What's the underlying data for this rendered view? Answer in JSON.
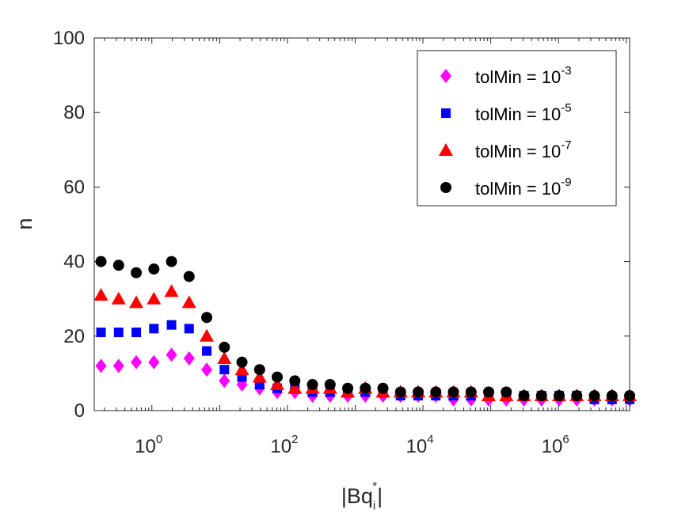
{
  "chart_data": {
    "type": "scatter",
    "title": "",
    "xscale": "log",
    "xlim_exp": [
      -0.85,
      7.05
    ],
    "ylim": [
      0,
      100
    ],
    "xlabel": {
      "pre": "|Bq",
      "sub": "i",
      "sup": "*",
      "post": "|"
    },
    "ylabel": "n",
    "x_ticks": [
      {
        "value": 1,
        "base": "10",
        "exp": "0"
      },
      {
        "value": 100,
        "base": "10",
        "exp": "2"
      },
      {
        "value": 10000,
        "base": "10",
        "exp": "4"
      },
      {
        "value": 1000000,
        "base": "10",
        "exp": "6"
      }
    ],
    "y_ticks": [
      0,
      20,
      40,
      60,
      80,
      100
    ],
    "x_log10": [
      -0.75,
      -0.49,
      -0.23,
      0.03,
      0.29,
      0.55,
      0.81,
      1.07,
      1.33,
      1.59,
      1.85,
      2.11,
      2.37,
      2.63,
      2.89,
      3.15,
      3.41,
      3.67,
      3.93,
      4.19,
      4.45,
      4.71,
      4.97,
      5.23,
      5.49,
      5.75,
      6.01,
      6.27,
      6.53,
      6.79,
      7.05
    ],
    "series": [
      {
        "name": "tolMin = 10^-3",
        "label_base": "tolMin = 10",
        "label_exp": "-3",
        "marker": "diamond",
        "color": "#ff00ff",
        "values": [
          12,
          12,
          13,
          13,
          15,
          14,
          11,
          8,
          7,
          6,
          5,
          5,
          4,
          4,
          4,
          4,
          4,
          4,
          4,
          4,
          3,
          3,
          3,
          3,
          3,
          3,
          3,
          3,
          3,
          3,
          3
        ]
      },
      {
        "name": "tolMin = 10^-5",
        "label_base": "tolMin = 10",
        "label_exp": "-5",
        "marker": "square",
        "color": "#0000ff",
        "values": [
          21,
          21,
          21,
          22,
          23,
          22,
          16,
          11,
          9,
          7,
          6,
          6,
          5,
          5,
          5,
          5,
          5,
          4,
          4,
          4,
          4,
          4,
          4,
          4,
          4,
          4,
          4,
          4,
          3,
          3,
          3
        ]
      },
      {
        "name": "tolMin = 10^-7",
        "label_base": "tolMin = 10",
        "label_exp": "-7",
        "marker": "triangle",
        "color": "#ff0000",
        "values": [
          31,
          30,
          29,
          30,
          32,
          29,
          20,
          14,
          11,
          9,
          7,
          6,
          6,
          6,
          5,
          6,
          5,
          5,
          5,
          5,
          5,
          5,
          4,
          4,
          4,
          4,
          4,
          4,
          4,
          4,
          4
        ]
      },
      {
        "name": "tolMin = 10^-9",
        "label_base": "tolMin = 10",
        "label_exp": "-9",
        "marker": "circle",
        "color": "#000000",
        "values": [
          40,
          39,
          37,
          38,
          40,
          36,
          25,
          17,
          13,
          11,
          9,
          8,
          7,
          7,
          6,
          6,
          6,
          5,
          5,
          5,
          5,
          5,
          5,
          5,
          4,
          4,
          4,
          4,
          4,
          4,
          4
        ]
      }
    ],
    "legend": {
      "position": "top-right",
      "box": true
    },
    "grid": false
  }
}
